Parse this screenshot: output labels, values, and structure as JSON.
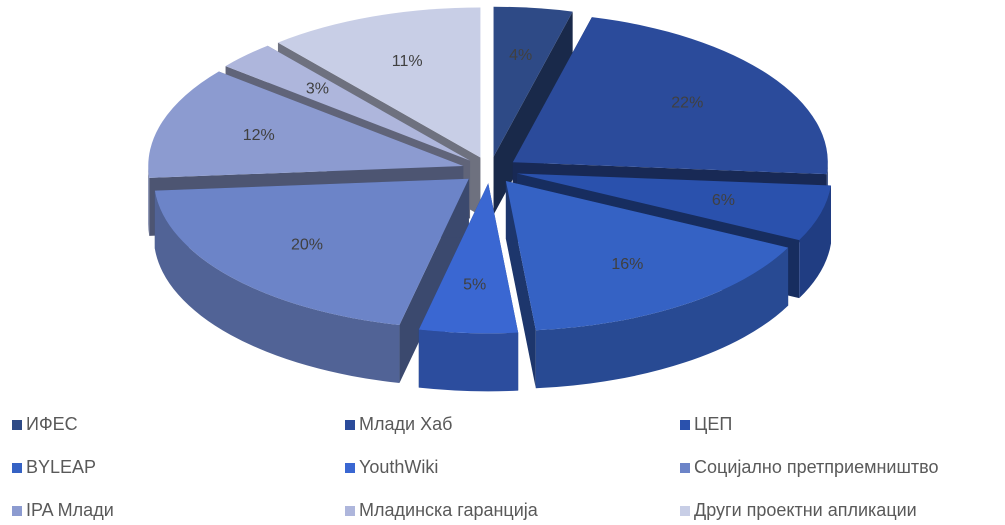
{
  "chart_data": {
    "type": "pie3d",
    "categories": [
      "ИФЕС",
      "Млади Хаб",
      "ЦЕП",
      "BYLEAP",
      "YouthWiki",
      "Социјално претприемништво",
      "IPA Млади",
      "Младинска гаранција",
      "Други проектни апликации"
    ],
    "values": [
      4,
      22,
      6,
      16,
      5,
      20,
      12,
      3,
      11
    ],
    "value_labels": [
      "4%",
      "22%",
      "6%",
      "16%",
      "5%",
      "20%",
      "12%",
      "3%",
      "11%"
    ],
    "colors": [
      "#2e4a86",
      "#2b4b9b",
      "#2a51ad",
      "#3562c4",
      "#3a67d2",
      "#6c84c8",
      "#8c9bd0",
      "#aeb6dc",
      "#c8cee6"
    ],
    "legend": "bottom"
  }
}
